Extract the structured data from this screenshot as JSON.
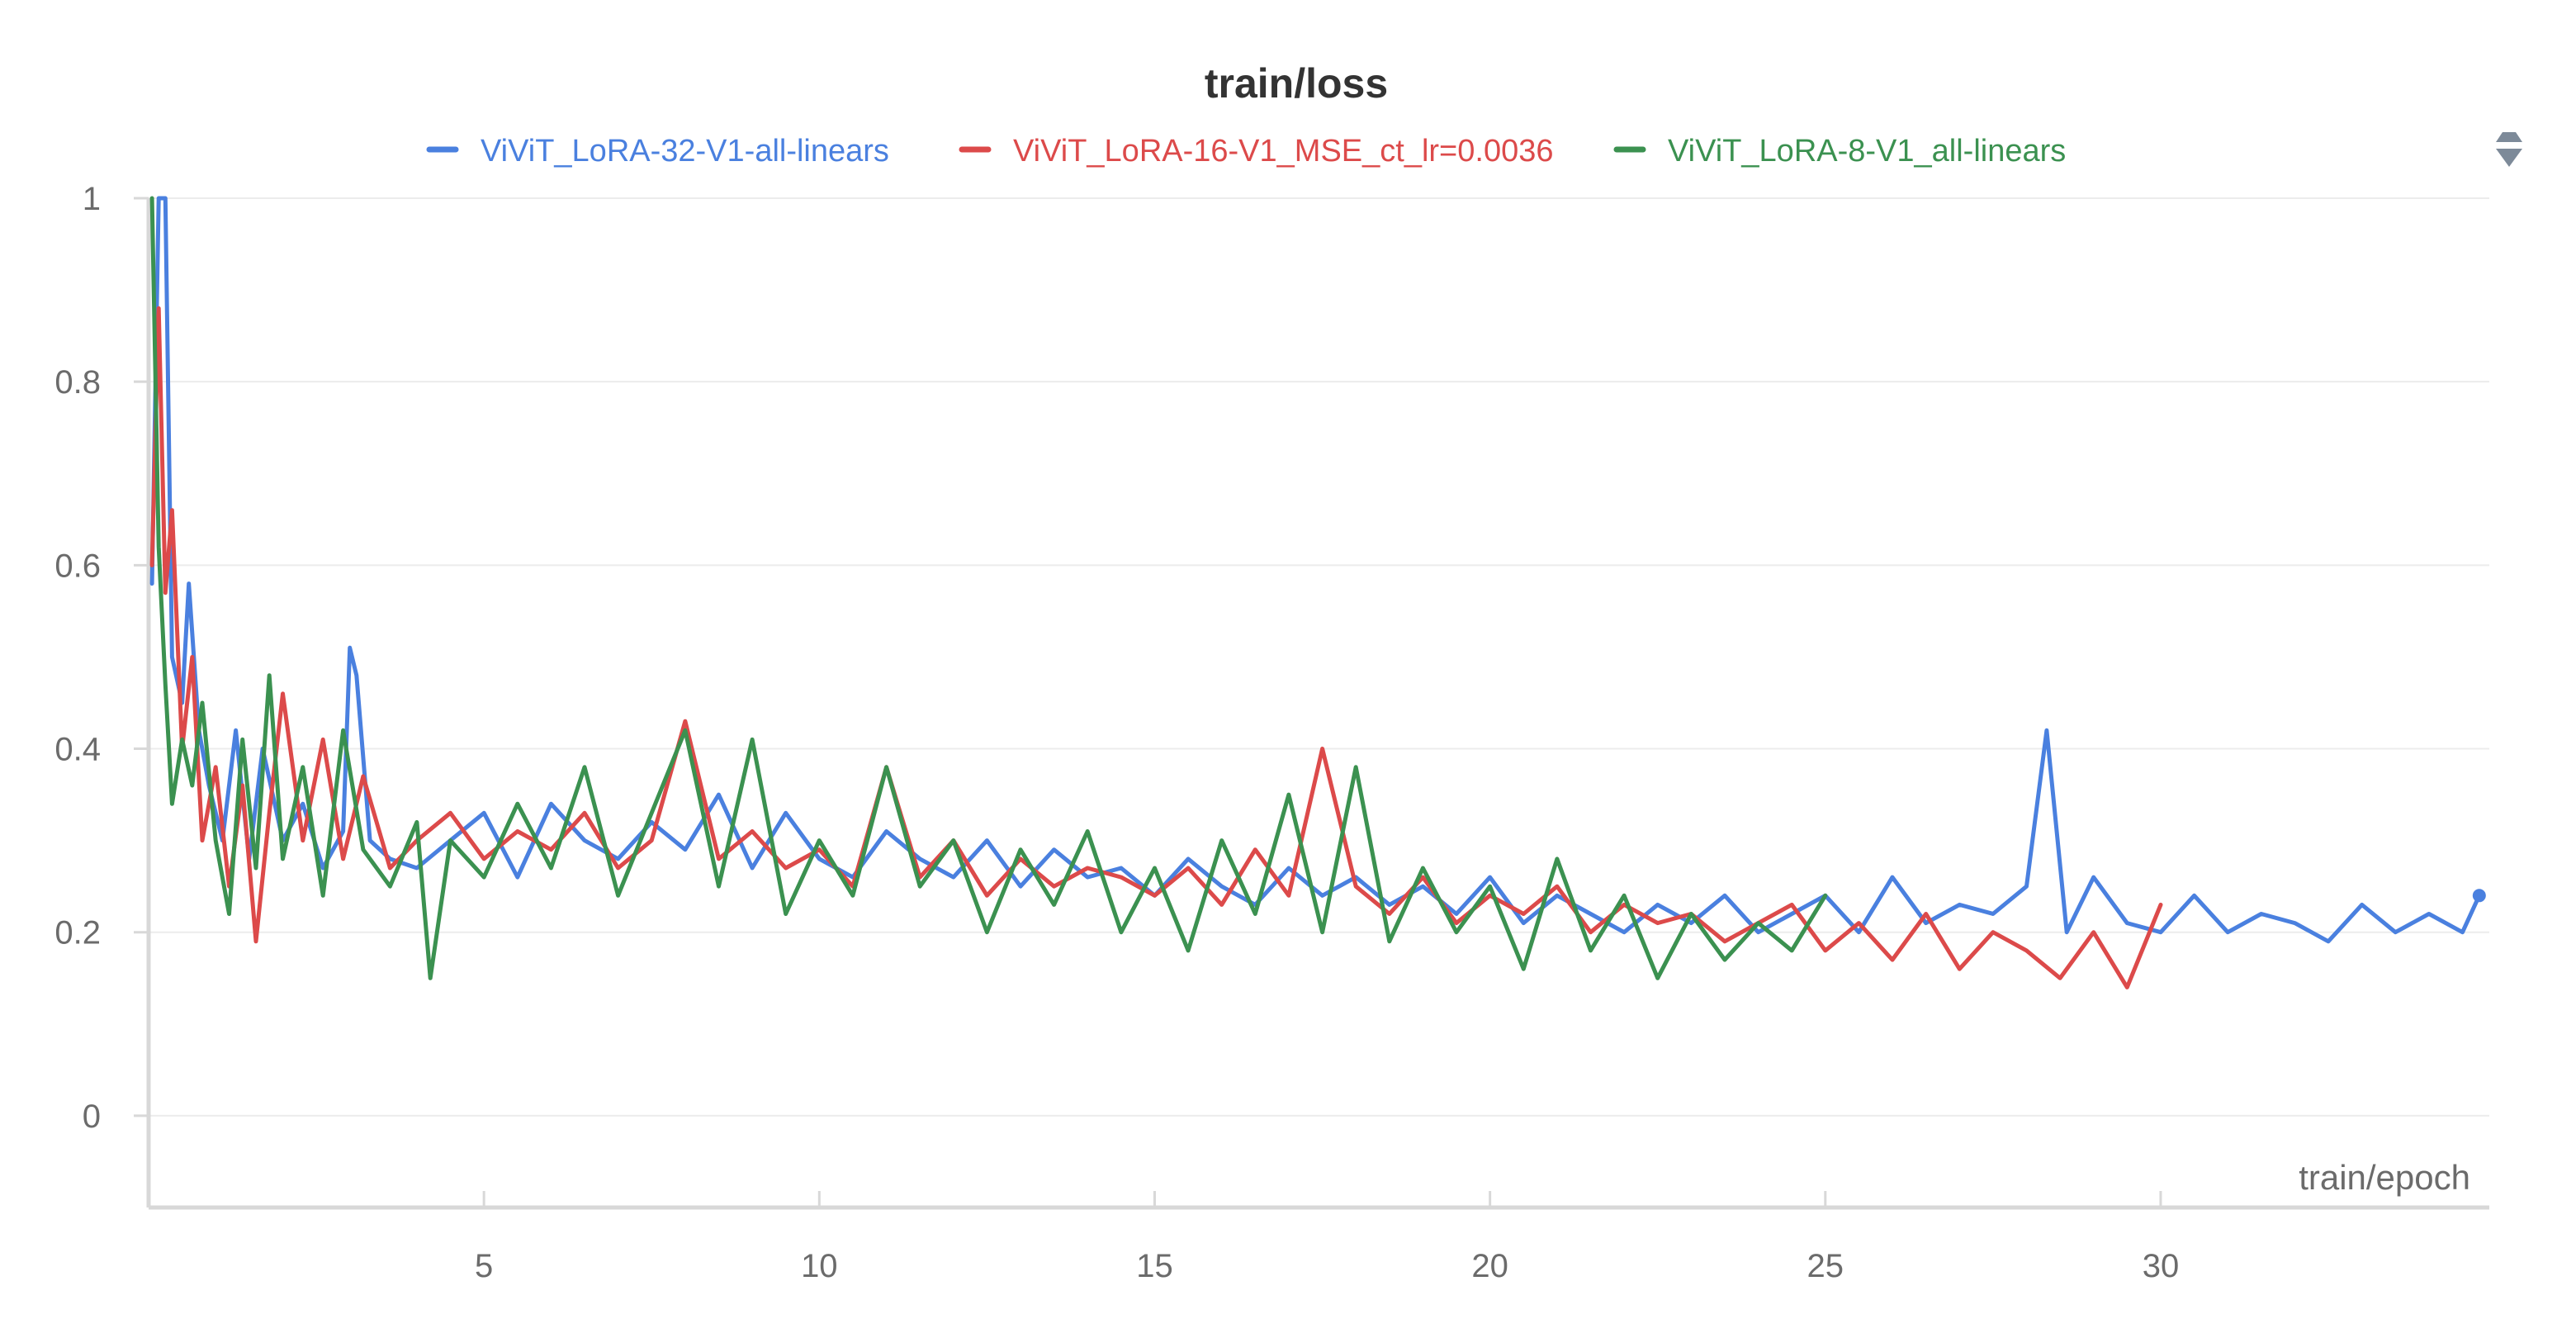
{
  "chart_data": {
    "type": "line",
    "title": "train/loss",
    "xlabel": "train/epoch",
    "ylabel": "",
    "xlim": [
      0,
      34.9
    ],
    "ylim": [
      -0.1,
      1.0
    ],
    "x_ticks": [
      5,
      10,
      15,
      20,
      25,
      30
    ],
    "y_ticks": [
      0,
      0.2,
      0.4,
      0.6,
      0.8,
      1
    ],
    "grid": "horizontal",
    "legend_position": "top-center",
    "series": [
      {
        "name": "ViViT_LoRA-32-V1-all-linears",
        "color": "#4a80df",
        "x": [
          0.05,
          0.15,
          0.25,
          0.35,
          0.5,
          0.6,
          0.75,
          0.9,
          1.1,
          1.3,
          1.5,
          1.7,
          2.0,
          2.3,
          2.6,
          2.9,
          3.0,
          3.1,
          3.3,
          3.6,
          4.0,
          4.5,
          5.0,
          5.5,
          6.0,
          6.5,
          7.0,
          7.5,
          8.0,
          8.5,
          9.0,
          9.5,
          10.0,
          10.5,
          11.0,
          11.5,
          12.0,
          12.5,
          13.0,
          13.5,
          14.0,
          14.5,
          15.0,
          15.5,
          16.0,
          16.5,
          17.0,
          17.5,
          18.0,
          18.5,
          19.0,
          19.5,
          20.0,
          20.5,
          21.0,
          21.5,
          22.0,
          22.5,
          23.0,
          23.5,
          24.0,
          24.5,
          25.0,
          25.5,
          26.0,
          26.5,
          27.0,
          27.5,
          28.0,
          28.3,
          28.6,
          29.0,
          29.5,
          30.0,
          30.5,
          31.0,
          31.5,
          32.0,
          32.5,
          33.0,
          33.5,
          34.0,
          34.5,
          34.75
        ],
        "values": [
          0.58,
          1.0,
          1.0,
          0.5,
          0.45,
          0.58,
          0.42,
          0.36,
          0.3,
          0.42,
          0.28,
          0.4,
          0.3,
          0.34,
          0.27,
          0.31,
          0.51,
          0.48,
          0.3,
          0.28,
          0.27,
          0.3,
          0.33,
          0.26,
          0.34,
          0.3,
          0.28,
          0.32,
          0.29,
          0.35,
          0.27,
          0.33,
          0.28,
          0.26,
          0.31,
          0.28,
          0.26,
          0.3,
          0.25,
          0.29,
          0.26,
          0.27,
          0.24,
          0.28,
          0.25,
          0.23,
          0.27,
          0.24,
          0.26,
          0.23,
          0.25,
          0.22,
          0.26,
          0.21,
          0.24,
          0.22,
          0.2,
          0.23,
          0.21,
          0.24,
          0.2,
          0.22,
          0.24,
          0.2,
          0.26,
          0.21,
          0.23,
          0.22,
          0.25,
          0.42,
          0.2,
          0.26,
          0.21,
          0.2,
          0.24,
          0.2,
          0.22,
          0.21,
          0.19,
          0.23,
          0.2,
          0.22,
          0.2,
          0.24
        ]
      },
      {
        "name": "ViViT_LoRA-16-V1_MSE_ct_lr=0.0036",
        "color": "#dc4a4a",
        "x": [
          0.05,
          0.15,
          0.25,
          0.35,
          0.5,
          0.65,
          0.8,
          1.0,
          1.2,
          1.4,
          1.6,
          1.8,
          2.0,
          2.3,
          2.6,
          2.9,
          3.2,
          3.6,
          4.0,
          4.5,
          5.0,
          5.5,
          6.0,
          6.5,
          7.0,
          7.5,
          8.0,
          8.5,
          9.0,
          9.5,
          10.0,
          10.5,
          11.0,
          11.5,
          12.0,
          12.5,
          13.0,
          13.5,
          14.0,
          14.5,
          15.0,
          15.5,
          16.0,
          16.5,
          17.0,
          17.5,
          18.0,
          18.5,
          19.0,
          19.5,
          20.0,
          20.5,
          21.0,
          21.5,
          22.0,
          22.5,
          23.0,
          23.5,
          24.0,
          24.5,
          25.0,
          25.5,
          26.0,
          26.5,
          27.0,
          27.5,
          28.0,
          28.5,
          29.0,
          29.5,
          30.0
        ],
        "values": [
          0.6,
          0.88,
          0.57,
          0.66,
          0.4,
          0.5,
          0.3,
          0.38,
          0.25,
          0.36,
          0.19,
          0.33,
          0.46,
          0.3,
          0.41,
          0.28,
          0.37,
          0.27,
          0.3,
          0.33,
          0.28,
          0.31,
          0.29,
          0.33,
          0.27,
          0.3,
          0.43,
          0.28,
          0.31,
          0.27,
          0.29,
          0.25,
          0.38,
          0.26,
          0.3,
          0.24,
          0.28,
          0.25,
          0.27,
          0.26,
          0.24,
          0.27,
          0.23,
          0.29,
          0.24,
          0.4,
          0.25,
          0.22,
          0.26,
          0.21,
          0.24,
          0.22,
          0.25,
          0.2,
          0.23,
          0.21,
          0.22,
          0.19,
          0.21,
          0.23,
          0.18,
          0.21,
          0.17,
          0.22,
          0.16,
          0.2,
          0.18,
          0.15,
          0.2,
          0.14,
          0.23
        ]
      },
      {
        "name": "ViViT_LoRA-8-V1_all-linears",
        "color": "#3b9150",
        "x": [
          0.05,
          0.15,
          0.25,
          0.35,
          0.5,
          0.65,
          0.8,
          1.0,
          1.2,
          1.4,
          1.6,
          1.8,
          2.0,
          2.3,
          2.6,
          2.9,
          3.2,
          3.6,
          4.0,
          4.2,
          4.5,
          5.0,
          5.5,
          6.0,
          6.5,
          7.0,
          7.5,
          8.0,
          8.5,
          9.0,
          9.5,
          10.0,
          10.5,
          11.0,
          11.5,
          12.0,
          12.5,
          13.0,
          13.5,
          14.0,
          14.5,
          15.0,
          15.5,
          16.0,
          16.5,
          17.0,
          17.5,
          18.0,
          18.5,
          19.0,
          19.5,
          20.0,
          20.5,
          21.0,
          21.5,
          22.0,
          22.5,
          23.0,
          23.5,
          24.0,
          24.5,
          25.0
        ],
        "values": [
          1.0,
          0.62,
          0.47,
          0.34,
          0.41,
          0.36,
          0.45,
          0.3,
          0.22,
          0.41,
          0.27,
          0.48,
          0.28,
          0.38,
          0.24,
          0.42,
          0.29,
          0.25,
          0.32,
          0.15,
          0.3,
          0.26,
          0.34,
          0.27,
          0.38,
          0.24,
          0.33,
          0.42,
          0.25,
          0.41,
          0.22,
          0.3,
          0.24,
          0.38,
          0.25,
          0.3,
          0.2,
          0.29,
          0.23,
          0.31,
          0.2,
          0.27,
          0.18,
          0.3,
          0.22,
          0.35,
          0.2,
          0.38,
          0.19,
          0.27,
          0.2,
          0.25,
          0.16,
          0.28,
          0.18,
          0.24,
          0.15,
          0.22,
          0.17,
          0.21,
          0.18,
          0.24
        ]
      }
    ]
  }
}
